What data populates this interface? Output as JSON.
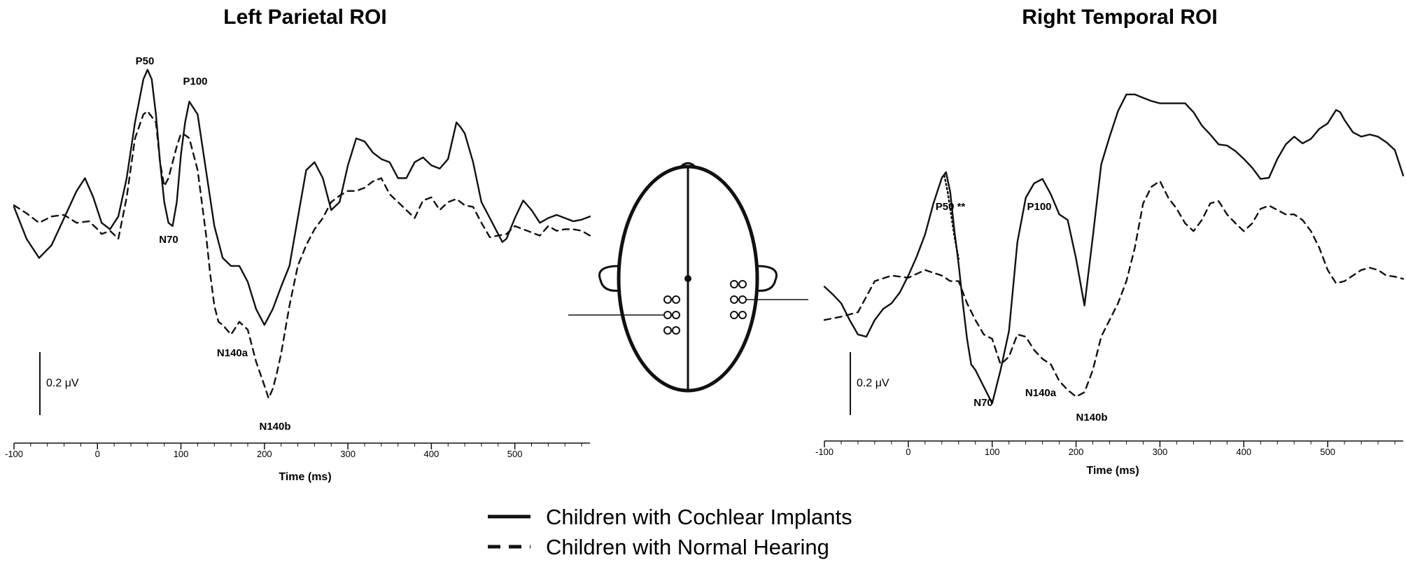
{
  "legend": {
    "items": [
      {
        "label": "Children with Cochlear Implants",
        "style": "solid"
      },
      {
        "label": "Children with Normal Hearing",
        "style": "dashed"
      }
    ]
  },
  "chart_data": [
    {
      "type": "line",
      "title": "Left Parietal ROI",
      "xlabel": "Time (ms)",
      "ylabel": "",
      "x_ticks": [
        -100,
        0,
        100,
        200,
        300,
        400,
        500
      ],
      "xlim": [
        -100,
        590
      ],
      "ylim": [
        -1.25,
        0.9
      ],
      "scale_bar": {
        "label": "0.2 μV",
        "value": 0.2
      },
      "series": [
        {
          "name": "Children with Cochlear Implants",
          "style": "solid",
          "x": [
            -100,
            -85,
            -70,
            -55,
            -40,
            -25,
            -15,
            -5,
            5,
            15,
            25,
            35,
            45,
            55,
            60,
            65,
            70,
            75,
            80,
            85,
            90,
            95,
            100,
            105,
            110,
            120,
            130,
            140,
            150,
            160,
            170,
            180,
            190,
            200,
            210,
            220,
            230,
            240,
            250,
            260,
            270,
            280,
            290,
            300,
            310,
            320,
            330,
            340,
            350,
            360,
            370,
            380,
            390,
            400,
            410,
            420,
            430,
            435,
            440,
            450,
            460,
            470,
            480,
            485,
            490,
            500,
            510,
            520,
            530,
            540,
            550,
            560,
            570,
            580,
            590
          ],
          "y": [
            0.02,
            -0.18,
            -0.3,
            -0.22,
            -0.05,
            0.12,
            0.2,
            0.08,
            -0.08,
            -0.12,
            -0.04,
            0.2,
            0.55,
            0.82,
            0.88,
            0.82,
            0.6,
            0.3,
            0.05,
            -0.08,
            -0.1,
            0.05,
            0.35,
            0.55,
            0.68,
            0.6,
            0.25,
            -0.1,
            -0.3,
            -0.35,
            -0.35,
            -0.45,
            -0.62,
            -0.72,
            -0.62,
            -0.48,
            -0.35,
            -0.05,
            0.25,
            0.3,
            0.2,
            0.0,
            0.05,
            0.28,
            0.45,
            0.43,
            0.36,
            0.32,
            0.3,
            0.2,
            0.2,
            0.3,
            0.33,
            0.28,
            0.26,
            0.32,
            0.55,
            0.52,
            0.48,
            0.3,
            0.05,
            -0.05,
            -0.15,
            -0.2,
            -0.18,
            -0.05,
            0.06,
            0.0,
            -0.08,
            -0.05,
            -0.03,
            -0.05,
            -0.07,
            -0.06,
            -0.04
          ]
        },
        {
          "name": "Children with Normal Hearing",
          "style": "dashed",
          "x": [
            -100,
            -85,
            -70,
            -55,
            -40,
            -25,
            -10,
            0,
            5,
            15,
            25,
            35,
            45,
            55,
            60,
            70,
            75,
            80,
            85,
            95,
            100,
            105,
            110,
            120,
            130,
            135,
            140,
            145,
            150,
            160,
            170,
            180,
            190,
            200,
            205,
            210,
            215,
            220,
            230,
            240,
            250,
            260,
            270,
            280,
            290,
            300,
            310,
            320,
            330,
            340,
            350,
            360,
            370,
            380,
            390,
            400,
            410,
            420,
            430,
            440,
            450,
            460,
            470,
            480,
            490,
            500,
            510,
            520,
            530,
            540,
            550,
            560,
            570,
            580,
            590
          ],
          "y": [
            0.03,
            -0.02,
            -0.08,
            -0.04,
            -0.03,
            -0.08,
            -0.07,
            -0.12,
            -0.15,
            -0.13,
            -0.18,
            0.08,
            0.45,
            0.6,
            0.62,
            0.55,
            0.3,
            0.15,
            0.2,
            0.4,
            0.48,
            0.47,
            0.45,
            0.25,
            -0.15,
            -0.4,
            -0.6,
            -0.7,
            -0.72,
            -0.78,
            -0.7,
            -0.75,
            -0.95,
            -1.1,
            -1.18,
            -1.12,
            -1.02,
            -0.9,
            -0.6,
            -0.35,
            -0.22,
            -0.12,
            -0.05,
            0.05,
            0.09,
            0.12,
            0.12,
            0.14,
            0.18,
            0.2,
            0.1,
            0.05,
            0.0,
            -0.05,
            0.06,
            0.08,
            0.0,
            0.05,
            0.07,
            0.03,
            0.02,
            -0.08,
            -0.17,
            -0.16,
            -0.15,
            -0.1,
            -0.12,
            -0.14,
            -0.16,
            -0.1,
            -0.13,
            -0.12,
            -0.12,
            -0.13,
            -0.16
          ]
        }
      ],
      "annotations": [
        "P50",
        "P100",
        "N70",
        "N140a",
        "N140b"
      ]
    },
    {
      "type": "line",
      "title": "Right Temporal ROI",
      "xlabel": "Time (ms)",
      "ylabel": "",
      "x_ticks": [
        -100,
        0,
        100,
        200,
        300,
        400,
        500
      ],
      "xlim": [
        -100,
        590
      ],
      "ylim": [
        -1.35,
        1.8
      ],
      "scale_bar": {
        "label": "0.2 μV",
        "value": 0.2
      },
      "series": [
        {
          "name": "Children with Cochlear Implants",
          "style": "solid",
          "x": [
            -100,
            -90,
            -80,
            -70,
            -60,
            -50,
            -40,
            -30,
            -20,
            -10,
            0,
            10,
            20,
            30,
            40,
            45,
            50,
            55,
            60,
            65,
            70,
            75,
            80,
            90,
            100,
            110,
            120,
            130,
            140,
            150,
            160,
            170,
            180,
            190,
            200,
            210,
            220,
            230,
            240,
            250,
            260,
            270,
            280,
            290,
            300,
            310,
            320,
            330,
            340,
            350,
            360,
            370,
            380,
            390,
            400,
            410,
            420,
            430,
            440,
            450,
            460,
            470,
            480,
            490,
            500,
            510,
            515,
            520,
            530,
            540,
            550,
            560,
            570,
            580,
            590
          ],
          "y": [
            -0.15,
            -0.22,
            -0.3,
            -0.45,
            -0.58,
            -0.6,
            -0.45,
            -0.35,
            -0.3,
            -0.2,
            -0.05,
            0.12,
            0.32,
            0.6,
            0.83,
            0.88,
            0.7,
            0.35,
            0.05,
            -0.3,
            -0.62,
            -0.85,
            -0.9,
            -1.05,
            -1.2,
            -0.9,
            -0.55,
            0.25,
            0.65,
            0.78,
            0.82,
            0.68,
            0.5,
            0.45,
            0.1,
            -0.32,
            0.3,
            0.95,
            1.2,
            1.43,
            1.58,
            1.58,
            1.55,
            1.52,
            1.5,
            1.5,
            1.5,
            1.5,
            1.42,
            1.3,
            1.22,
            1.13,
            1.12,
            1.07,
            1.0,
            0.92,
            0.82,
            0.83,
            1.0,
            1.13,
            1.2,
            1.14,
            1.18,
            1.27,
            1.32,
            1.44,
            1.42,
            1.35,
            1.24,
            1.2,
            1.22,
            1.2,
            1.15,
            1.08,
            0.85
          ]
        },
        {
          "name": "Children with Normal Hearing",
          "style": "dashed",
          "x": [
            -100,
            -80,
            -60,
            -40,
            -20,
            0,
            20,
            40,
            50,
            60,
            70,
            80,
            90,
            100,
            110,
            120,
            130,
            140,
            150,
            160,
            170,
            180,
            190,
            200,
            210,
            220,
            230,
            240,
            250,
            260,
            270,
            280,
            290,
            300,
            310,
            320,
            330,
            340,
            350,
            360,
            370,
            380,
            390,
            400,
            410,
            420,
            430,
            440,
            450,
            460,
            470,
            480,
            490,
            500,
            510,
            520,
            530,
            540,
            550,
            560,
            570,
            580,
            590
          ],
          "y": [
            -0.45,
            -0.42,
            -0.38,
            -0.1,
            -0.05,
            -0.07,
            0.0,
            -0.05,
            -0.1,
            -0.1,
            -0.3,
            -0.45,
            -0.58,
            -0.62,
            -0.85,
            -0.78,
            -0.58,
            -0.6,
            -0.72,
            -0.8,
            -0.85,
            -1.0,
            -1.08,
            -1.14,
            -1.1,
            -0.9,
            -0.6,
            -0.45,
            -0.3,
            -0.1,
            0.2,
            0.6,
            0.75,
            0.8,
            0.65,
            0.55,
            0.42,
            0.35,
            0.45,
            0.6,
            0.62,
            0.5,
            0.42,
            0.35,
            0.42,
            0.55,
            0.58,
            0.54,
            0.5,
            0.5,
            0.45,
            0.35,
            0.2,
            0.0,
            -0.12,
            -0.1,
            -0.05,
            0.0,
            0.02,
            0.0,
            -0.05,
            -0.06,
            -0.08
          ]
        },
        {
          "name": "",
          "style": "dotted",
          "x": [
            43,
            47,
            51,
            55,
            60
          ],
          "y": [
            0.85,
            0.7,
            0.5,
            0.3,
            0.1
          ]
        }
      ],
      "annotations": [
        "P50 **",
        "P100",
        "N70",
        "N140a",
        "N140b"
      ]
    }
  ]
}
